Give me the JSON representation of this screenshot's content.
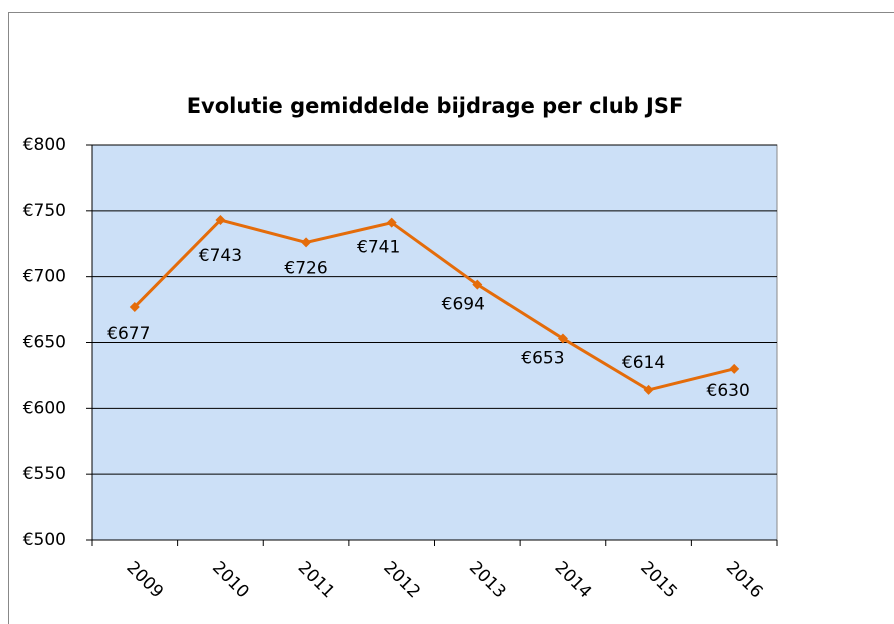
{
  "chart_data": {
    "type": "line",
    "title": "Evolutie gemiddelde bijdrage per club JSF",
    "categories": [
      "2009",
      "2010",
      "2011",
      "2012",
      "2013",
      "2014",
      "2015",
      "2016"
    ],
    "series": [
      {
        "name": "gemiddelde bijdrage",
        "color": "#e46c0a",
        "values": [
          677,
          743,
          726,
          741,
          694,
          653,
          614,
          630
        ],
        "value_labels": [
          "€677",
          "€743",
          "€726",
          "€741",
          "€694",
          "€653",
          "€614",
          "€630"
        ]
      }
    ],
    "ylim": [
      500,
      800
    ],
    "yticks": [
      {
        "value": 500,
        "label": "€500"
      },
      {
        "value": 550,
        "label": "€550"
      },
      {
        "value": 600,
        "label": "€600"
      },
      {
        "value": 650,
        "label": "€650"
      },
      {
        "value": 700,
        "label": "€700"
      },
      {
        "value": 750,
        "label": "€750"
      },
      {
        "value": 800,
        "label": "€800"
      }
    ],
    "grid": true,
    "plot_background": "#cce0f7"
  }
}
